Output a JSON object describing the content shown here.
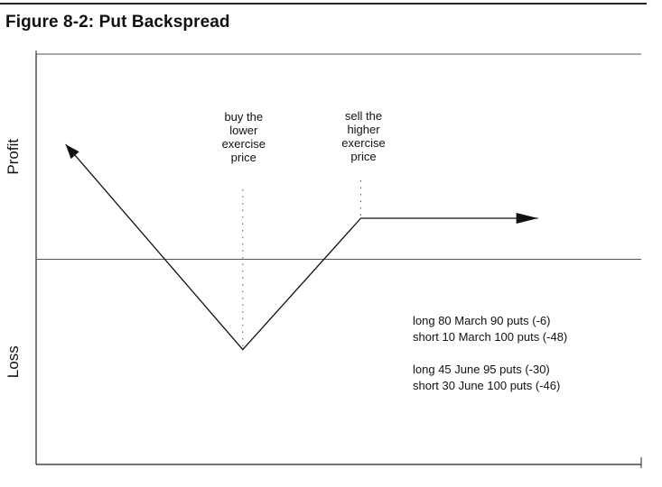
{
  "figure": {
    "title": "Figure 8-2: Put Backspread"
  },
  "chart_data": {
    "type": "line",
    "title": "",
    "xlabel": "",
    "ylabel_top": "Profit",
    "ylabel_bottom": "Loss",
    "series": [
      {
        "values_description": "payoff",
        "points": [
          {
            "x": 0,
            "y": 4.2
          },
          {
            "x": 6,
            "y": -3.3
          },
          {
            "x": 10,
            "y": 1.5
          },
          {
            "x": 16,
            "y": 1.5
          }
        ],
        "arrow_start": true,
        "arrow_end": true
      }
    ],
    "xlim": [
      -1,
      19.5
    ],
    "ylim": [
      -7.5,
      7.5
    ],
    "zero_line": 0,
    "markers": [
      {
        "x": 6,
        "label_lines": [
          "buy the",
          "lower",
          "exercise",
          "price"
        ]
      },
      {
        "x": 10,
        "label_lines": [
          "sell the",
          "higher",
          "exercise",
          "price"
        ]
      }
    ],
    "annotations": [
      [
        "long 80 March 90 puts (-6)",
        "short 10 March 100 puts (-48)"
      ],
      [
        "long 45 June 95 puts (-30)",
        "short 30 June 100 puts (-46)"
      ]
    ],
    "grid": false
  }
}
